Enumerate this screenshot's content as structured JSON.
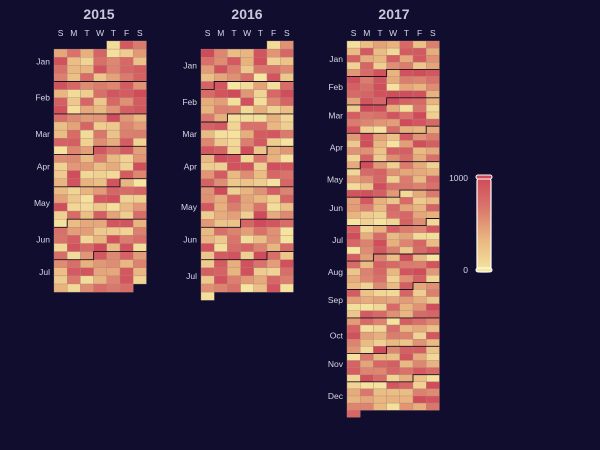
{
  "chart_data": {
    "type": "heatmap",
    "layout": "calendar",
    "calendars": [
      {
        "year": "2015",
        "title": "2015",
        "start": "2015-01-01",
        "end": "2015-07-31",
        "weekday_labels": [
          "S",
          "M",
          "T",
          "W",
          "T",
          "F",
          "S"
        ],
        "month_labels": [
          "Jan",
          "Feb",
          "Mar",
          "Apr",
          "May",
          "Jun",
          "Jul"
        ]
      },
      {
        "year": "2016",
        "title": "2016",
        "start": "2016-01-01",
        "end": "2016-07-31",
        "weekday_labels": [
          "S",
          "M",
          "T",
          "W",
          "T",
          "F",
          "S"
        ],
        "month_labels": [
          "Jan",
          "Feb",
          "Mar",
          "Apr",
          "May",
          "Jun",
          "Jul"
        ]
      },
      {
        "year": "2017",
        "title": "2017",
        "start": "2017-01-01",
        "end": "2017-12-31",
        "weekday_labels": [
          "S",
          "M",
          "T",
          "W",
          "T",
          "F",
          "S"
        ],
        "month_labels": [
          "Jan",
          "Feb",
          "Mar",
          "Apr",
          "May",
          "Jun",
          "Jul",
          "Aug",
          "Sep",
          "Oct",
          "Nov",
          "Dec"
        ]
      }
    ],
    "value_range": [
      0,
      1000
    ],
    "colorscale": [
      "#f5e6a1",
      "#e8b57f",
      "#d9726a",
      "#cf4a5a"
    ],
    "legend": {
      "placement": "right",
      "max_label": "1000",
      "min_label": "0"
    }
  },
  "colors": {
    "background": "#110d2e",
    "text": "#d6d6e6",
    "title": "#c8c8dc",
    "cell_border": "#b98b7f",
    "month_boundary": "#1a1020"
  }
}
